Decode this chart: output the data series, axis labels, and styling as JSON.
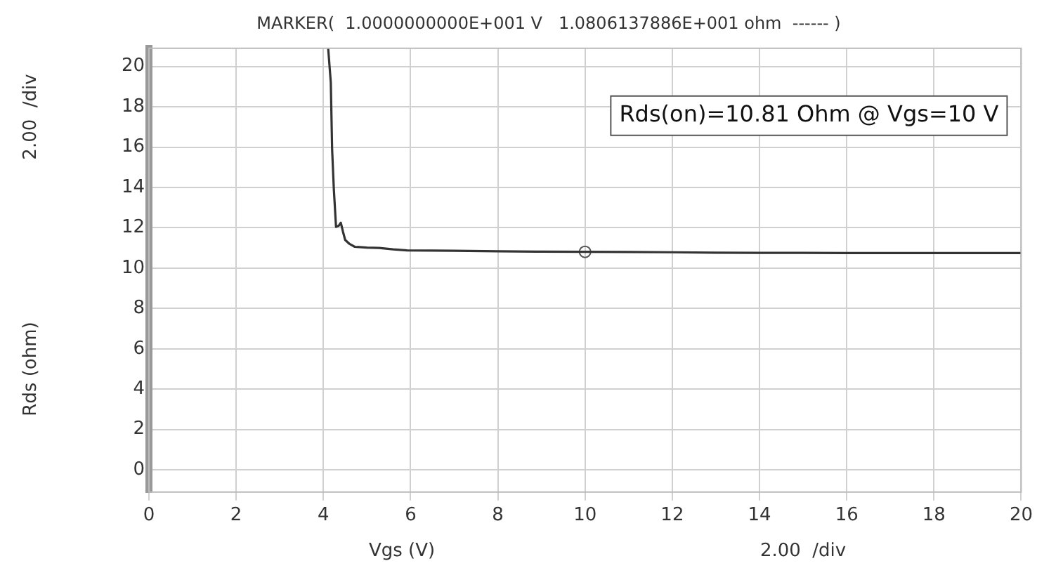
{
  "chart_data": {
    "type": "line",
    "title": "MARKER(  1.0000000000E+001 V   1.0806137886E+001 ohm  ------ )",
    "xlabel": "Vgs (V)",
    "ylabel": "Rds (ohm)",
    "annotations": [
      "Rds(on)=10.81 Ohm @ Vgs=10 V",
      "2.00  /div",
      "2.00  /div"
    ],
    "xlim": [
      0,
      20
    ],
    "xticks": [
      0,
      2,
      4,
      6,
      8,
      10,
      12,
      14,
      16,
      18,
      20
    ],
    "ylim": [
      -1.1,
      20.9
    ],
    "yticks": [
      0,
      2,
      4,
      6,
      8,
      10,
      12,
      14,
      16,
      18,
      20
    ],
    "grid": true,
    "line_style": "solid",
    "series": [
      {
        "color": "#333333",
        "marker": "none",
        "x": [
          4.11,
          4.17,
          4.2,
          4.24,
          4.29,
          4.35,
          4.4,
          4.45,
          4.5,
          4.6,
          4.72,
          5.0,
          5.28,
          5.6,
          5.92,
          6.5,
          7,
          8,
          9,
          10,
          11,
          12,
          13,
          14,
          15,
          16,
          17,
          18,
          19,
          20
        ],
        "values": [
          20.9,
          19.2,
          15.9,
          13.9,
          12.05,
          12.1,
          12.25,
          11.8,
          11.4,
          11.2,
          11.06,
          11.02,
          11.0,
          10.93,
          10.88,
          10.87,
          10.86,
          10.84,
          10.82,
          10.81,
          10.8,
          10.79,
          10.77,
          10.76,
          10.76,
          10.75,
          10.75,
          10.75,
          10.75,
          10.75
        ]
      },
      {
        "type": "scatter",
        "color": "#555555",
        "marker": "circle",
        "x": [
          10
        ],
        "values": [
          10.81
        ]
      }
    ]
  }
}
